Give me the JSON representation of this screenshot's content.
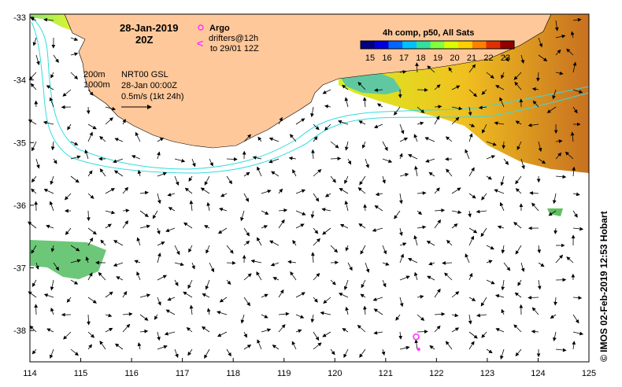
{
  "map": {
    "date_line1": "28-Jan-2019",
    "date_line2": "20Z",
    "legend": {
      "argo_label": "Argo",
      "drifters_line1": "drifters@12h",
      "drifters_line2": "to 29/01 12Z",
      "argo_color": "#ff33ff",
      "drifter_color": "#ff33ff"
    },
    "isobaths": {
      "label_200": "200m",
      "label_1000": "1000m",
      "color": "#33dddd"
    },
    "nrt": {
      "line1": "NRT00 GSL",
      "line2": "28-Jan 00:00Z",
      "line3": "0.5m/s (1kt 24h)"
    },
    "colorbar": {
      "title": "4h comp, p50, All Sats",
      "ticks": [
        "15",
        "16",
        "17",
        "18",
        "19",
        "20",
        "21",
        "22",
        "23"
      ],
      "colors": [
        "#000080",
        "#0000dd",
        "#0066ff",
        "#00c0ff",
        "#33e0a0",
        "#80ff40",
        "#d8ff00",
        "#ffd000",
        "#ff8000",
        "#e03000",
        "#900000"
      ]
    },
    "x_axis_ticks": [
      "114",
      "115",
      "116",
      "117",
      "118",
      "119",
      "120",
      "121",
      "122",
      "123",
      "124",
      "125"
    ],
    "y_axis_ticks": [
      "-33",
      "-34",
      "-35",
      "-36",
      "-37",
      "-38"
    ],
    "credit": "© IMOS 02-Feb-2019 12:53 Hobart",
    "land_color": "#ffc89a",
    "argo_float": {
      "lon": 121.6,
      "lat": -38.1
    },
    "drifter": {
      "lon": 121.65,
      "lat": -38.3
    }
  }
}
